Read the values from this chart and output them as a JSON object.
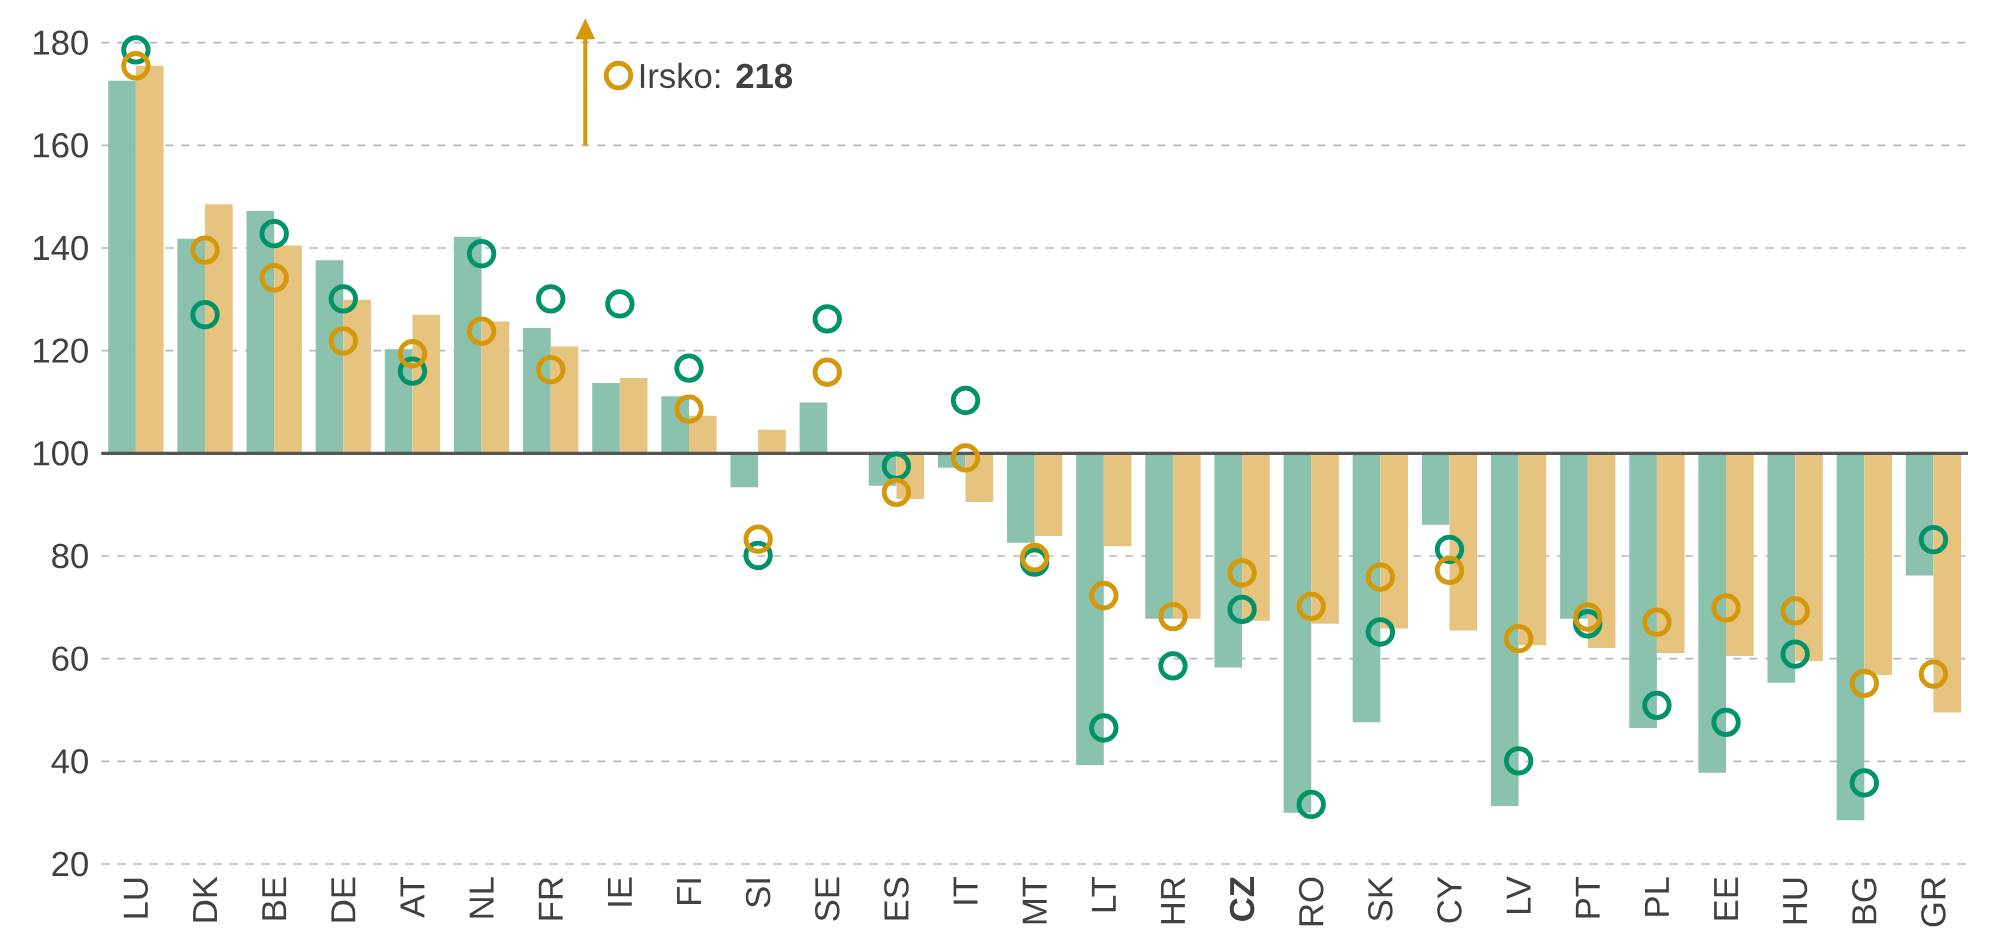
{
  "chart_data": {
    "type": "bar",
    "categories": [
      "LU",
      "DK",
      "BE",
      "DE",
      "AT",
      "NL",
      "FR",
      "IE",
      "FI",
      "SI",
      "SE",
      "ES",
      "IT",
      "MT",
      "LT",
      "HR",
      "**CZ**",
      "RO",
      "SK",
      "CY",
      "LV",
      "PT",
      "PL",
      "EE",
      "HU",
      "BG",
      "GR"
    ],
    "series": [
      {
        "color": "#8ac2ae",
        "base": [
          100,
          100,
          100,
          100,
          100,
          100,
          100,
          100,
          100,
          100,
          100,
          100,
          100,
          100,
          100,
          100,
          100,
          100,
          100,
          100,
          100,
          100,
          100,
          100,
          100,
          100,
          100
        ],
        "values": [
          72.6,
          41.8,
          47.2,
          37.6,
          20.3,
          42.2,
          24.4,
          13.7,
          11.1,
          -6.6,
          9.9,
          -6.3,
          -2.8,
          -17.4,
          -60.7,
          -32.2,
          -41.7,
          -70.0,
          -52.4,
          -13.9,
          -68.7,
          -32.2,
          -53.5,
          -62.2,
          -44.7,
          -71.5,
          -23.8
        ]
      },
      {
        "color": "#e6c47f",
        "base": [
          100,
          100,
          100,
          100,
          100,
          100,
          100,
          100,
          100,
          100,
          null,
          100,
          100,
          100,
          100,
          100,
          100,
          100,
          100,
          100,
          100,
          100,
          100,
          100,
          100,
          100,
          100
        ],
        "values": [
          75.5,
          48.5,
          40.5,
          29.9,
          27.0,
          25.7,
          20.8,
          14.7,
          7.3,
          4.6,
          null,
          -8.9,
          -9.5,
          -16.1,
          -18.1,
          -32.2,
          -32.6,
          -33.2,
          -34.1,
          -34.5,
          -37.4,
          -37.9,
          -38.9,
          -39.5,
          -40.5,
          -43.2,
          -50.5
        ]
      },
      {
        "type": "scatter",
        "color": "#00936a",
        "x": [
          "LU",
          "DK",
          "BE",
          "DE",
          "AT",
          "NL",
          "FR",
          "IE",
          "FI",
          "SI",
          "SE",
          "ES",
          "IT",
          "MT",
          "LT",
          "HR",
          "**CZ**",
          "RO",
          "SK",
          "CY",
          "LV",
          "PT",
          "PL",
          "EE",
          "HU",
          "BG",
          "GR"
        ],
        "values": [
          178.6,
          127.0,
          142.8,
          130.1,
          116.0,
          138.9,
          130.1,
          129.1,
          116.6,
          80.1,
          126.2,
          97.5,
          110.3,
          78.8,
          46.5,
          58.6,
          69.6,
          31.6,
          65.2,
          81.3,
          40.1,
          66.8,
          50.9,
          47.6,
          60.9,
          35.8,
          83.2
        ]
      },
      {
        "type": "scatter",
        "color": "#d4980a",
        "x": [
          "LU",
          "DK",
          "BE",
          "DE",
          "AT",
          "NL",
          "FR",
          "IE",
          "FI",
          "SI",
          "SE",
          "ES",
          "IT",
          "MT",
          "LT",
          "HR",
          "**CZ**",
          "RO",
          "SK",
          "CY",
          "LV",
          "PT",
          "PL",
          "EE",
          "HU",
          "BG",
          "GR"
        ],
        "values": [
          175.5,
          139.6,
          134.2,
          121.9,
          119.4,
          123.8,
          116.3,
          null,
          108.6,
          83.3,
          115.8,
          92.4,
          99.1,
          79.7,
          72.3,
          68.2,
          76.7,
          70.2,
          75.9,
          77.2,
          63.9,
          68.1,
          67.1,
          69.9,
          69.3,
          55.2,
          57.0
        ]
      }
    ],
    "ylim": [
      20,
      180
    ],
    "yticks": [
      20,
      40,
      60,
      80,
      100,
      120,
      140,
      160,
      180
    ],
    "grid": "y",
    "marker": "circle",
    "ref_lines": [
      {
        "axis": "y",
        "value": 100,
        "color": "#555555"
      }
    ],
    "annotations": [
      {
        "text": "Irsko: **218**",
        "x": "IE"
      }
    ]
  }
}
